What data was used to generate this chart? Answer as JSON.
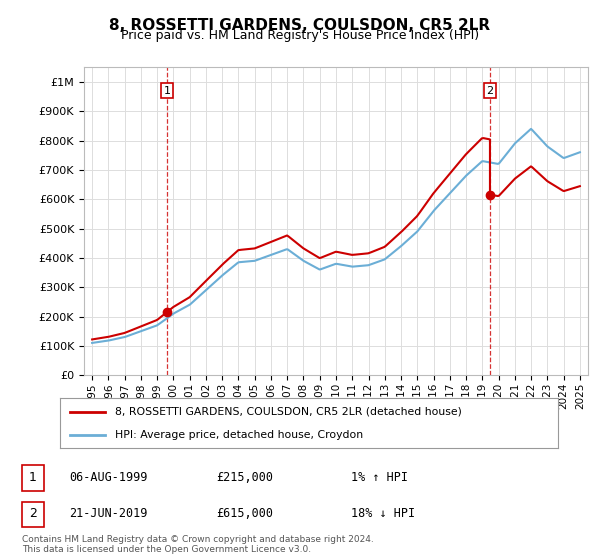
{
  "title": "8, ROSSETTI GARDENS, COULSDON, CR5 2LR",
  "subtitle": "Price paid vs. HM Land Registry's House Price Index (HPI)",
  "legend_line1": "8, ROSSETTI GARDENS, COULSDON, CR5 2LR (detached house)",
  "legend_line2": "HPI: Average price, detached house, Croydon",
  "annotation1_date": "06-AUG-1999",
  "annotation1_price": "£215,000",
  "annotation1_hpi": "1% ↑ HPI",
  "annotation2_date": "21-JUN-2019",
  "annotation2_price": "£615,000",
  "annotation2_hpi": "18% ↓ HPI",
  "footnote": "Contains HM Land Registry data © Crown copyright and database right 2024.\nThis data is licensed under the Open Government Licence v3.0.",
  "sale1_year": 1999.6,
  "sale1_price": 215000,
  "sale2_year": 2019.47,
  "sale2_price": 615000,
  "hpi_color": "#6baed6",
  "price_color": "#cc0000",
  "annotation_color": "#cc0000",
  "background_color": "#ffffff",
  "grid_color": "#dddddd",
  "ylim_min": 0,
  "ylim_max": 1050000,
  "xlim_min": 1994.5,
  "xlim_max": 2025.5
}
